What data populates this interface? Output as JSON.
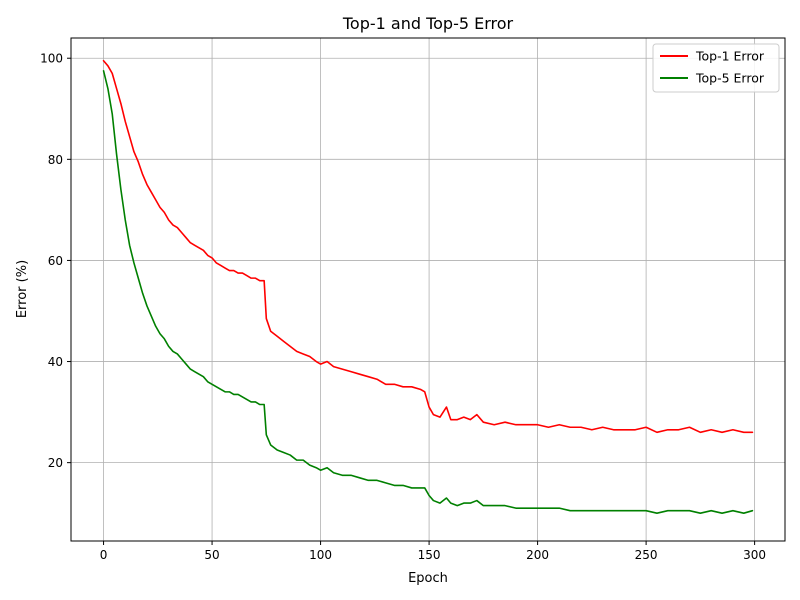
{
  "chart_data": {
    "type": "line",
    "title": "Top-1 and Top-5 Error",
    "xlabel": "Epoch",
    "ylabel": "Error (%)",
    "xlim": [
      -15,
      314
    ],
    "ylim": [
      4.5,
      104
    ],
    "xticks": [
      0,
      50,
      100,
      150,
      200,
      250,
      300
    ],
    "yticks": [
      20,
      40,
      60,
      80,
      100
    ],
    "grid": true,
    "legend_position": "top-right",
    "series": [
      {
        "name": "Top-1 Error",
        "color": "#ff0000",
        "points": [
          [
            0,
            99.5
          ],
          [
            2,
            98.5
          ],
          [
            4,
            97
          ],
          [
            6,
            94
          ],
          [
            8,
            91
          ],
          [
            10,
            87.5
          ],
          [
            12,
            84.5
          ],
          [
            14,
            81.5
          ],
          [
            16,
            79.5
          ],
          [
            18,
            77
          ],
          [
            20,
            75
          ],
          [
            22,
            73.5
          ],
          [
            24,
            72
          ],
          [
            26,
            70.5
          ],
          [
            28,
            69.5
          ],
          [
            30,
            68
          ],
          [
            32,
            67
          ],
          [
            34,
            66.5
          ],
          [
            36,
            65.5
          ],
          [
            38,
            64.5
          ],
          [
            40,
            63.5
          ],
          [
            42,
            63
          ],
          [
            44,
            62.5
          ],
          [
            46,
            62
          ],
          [
            48,
            61
          ],
          [
            50,
            60.5
          ],
          [
            52,
            59.5
          ],
          [
            54,
            59
          ],
          [
            56,
            58.5
          ],
          [
            58,
            58
          ],
          [
            60,
            58
          ],
          [
            62,
            57.5
          ],
          [
            64,
            57.5
          ],
          [
            66,
            57
          ],
          [
            68,
            56.5
          ],
          [
            70,
            56.5
          ],
          [
            72,
            56
          ],
          [
            74,
            56
          ],
          [
            75,
            48.5
          ],
          [
            77,
            46
          ],
          [
            80,
            45
          ],
          [
            83,
            44
          ],
          [
            86,
            43
          ],
          [
            89,
            42
          ],
          [
            92,
            41.5
          ],
          [
            95,
            41
          ],
          [
            98,
            40
          ],
          [
            100,
            39.5
          ],
          [
            103,
            40
          ],
          [
            106,
            39
          ],
          [
            110,
            38.5
          ],
          [
            114,
            38
          ],
          [
            118,
            37.5
          ],
          [
            122,
            37
          ],
          [
            126,
            36.5
          ],
          [
            130,
            35.5
          ],
          [
            134,
            35.5
          ],
          [
            138,
            35
          ],
          [
            142,
            35
          ],
          [
            146,
            34.5
          ],
          [
            148,
            34
          ],
          [
            150,
            31
          ],
          [
            152,
            29.5
          ],
          [
            155,
            29
          ],
          [
            158,
            31
          ],
          [
            160,
            28.5
          ],
          [
            163,
            28.5
          ],
          [
            166,
            29
          ],
          [
            169,
            28.5
          ],
          [
            172,
            29.5
          ],
          [
            175,
            28
          ],
          [
            180,
            27.5
          ],
          [
            185,
            28
          ],
          [
            190,
            27.5
          ],
          [
            195,
            27.5
          ],
          [
            200,
            27.5
          ],
          [
            205,
            27
          ],
          [
            210,
            27.5
          ],
          [
            215,
            27
          ],
          [
            220,
            27
          ],
          [
            225,
            26.5
          ],
          [
            230,
            27
          ],
          [
            235,
            26.5
          ],
          [
            240,
            26.5
          ],
          [
            245,
            26.5
          ],
          [
            250,
            27
          ],
          [
            255,
            26
          ],
          [
            260,
            26.5
          ],
          [
            265,
            26.5
          ],
          [
            270,
            27
          ],
          [
            275,
            26
          ],
          [
            280,
            26.5
          ],
          [
            285,
            26
          ],
          [
            290,
            26.5
          ],
          [
            295,
            26
          ],
          [
            299,
            26
          ]
        ]
      },
      {
        "name": "Top-5 Error",
        "color": "#008000",
        "points": [
          [
            0,
            97.5
          ],
          [
            2,
            94
          ],
          [
            4,
            89
          ],
          [
            6,
            81
          ],
          [
            8,
            74
          ],
          [
            10,
            68
          ],
          [
            12,
            63
          ],
          [
            14,
            59.5
          ],
          [
            16,
            56.5
          ],
          [
            18,
            53.5
          ],
          [
            20,
            51
          ],
          [
            22,
            49
          ],
          [
            24,
            47
          ],
          [
            26,
            45.5
          ],
          [
            28,
            44.5
          ],
          [
            30,
            43
          ],
          [
            32,
            42
          ],
          [
            34,
            41.5
          ],
          [
            36,
            40.5
          ],
          [
            38,
            39.5
          ],
          [
            40,
            38.5
          ],
          [
            42,
            38
          ],
          [
            44,
            37.5
          ],
          [
            46,
            37
          ],
          [
            48,
            36
          ],
          [
            50,
            35.5
          ],
          [
            52,
            35
          ],
          [
            54,
            34.5
          ],
          [
            56,
            34
          ],
          [
            58,
            34
          ],
          [
            60,
            33.5
          ],
          [
            62,
            33.5
          ],
          [
            64,
            33
          ],
          [
            66,
            32.5
          ],
          [
            68,
            32
          ],
          [
            70,
            32
          ],
          [
            72,
            31.5
          ],
          [
            74,
            31.5
          ],
          [
            75,
            25.5
          ],
          [
            77,
            23.5
          ],
          [
            80,
            22.5
          ],
          [
            83,
            22
          ],
          [
            86,
            21.5
          ],
          [
            89,
            20.5
          ],
          [
            92,
            20.5
          ],
          [
            95,
            19.5
          ],
          [
            98,
            19
          ],
          [
            100,
            18.5
          ],
          [
            103,
            19
          ],
          [
            106,
            18
          ],
          [
            110,
            17.5
          ],
          [
            114,
            17.5
          ],
          [
            118,
            17
          ],
          [
            122,
            16.5
          ],
          [
            126,
            16.5
          ],
          [
            130,
            16
          ],
          [
            134,
            15.5
          ],
          [
            138,
            15.5
          ],
          [
            142,
            15
          ],
          [
            146,
            15
          ],
          [
            148,
            15
          ],
          [
            150,
            13.5
          ],
          [
            152,
            12.5
          ],
          [
            155,
            12
          ],
          [
            158,
            13
          ],
          [
            160,
            12
          ],
          [
            163,
            11.5
          ],
          [
            166,
            12
          ],
          [
            169,
            12
          ],
          [
            172,
            12.5
          ],
          [
            175,
            11.5
          ],
          [
            180,
            11.5
          ],
          [
            185,
            11.5
          ],
          [
            190,
            11
          ],
          [
            195,
            11
          ],
          [
            200,
            11
          ],
          [
            205,
            11
          ],
          [
            210,
            11
          ],
          [
            215,
            10.5
          ],
          [
            220,
            10.5
          ],
          [
            225,
            10.5
          ],
          [
            230,
            10.5
          ],
          [
            235,
            10.5
          ],
          [
            240,
            10.5
          ],
          [
            245,
            10.5
          ],
          [
            250,
            10.5
          ],
          [
            255,
            10
          ],
          [
            260,
            10.5
          ],
          [
            265,
            10.5
          ],
          [
            270,
            10.5
          ],
          [
            275,
            10
          ],
          [
            280,
            10.5
          ],
          [
            285,
            10
          ],
          [
            290,
            10.5
          ],
          [
            295,
            10
          ],
          [
            299,
            10.5
          ]
        ]
      }
    ]
  }
}
